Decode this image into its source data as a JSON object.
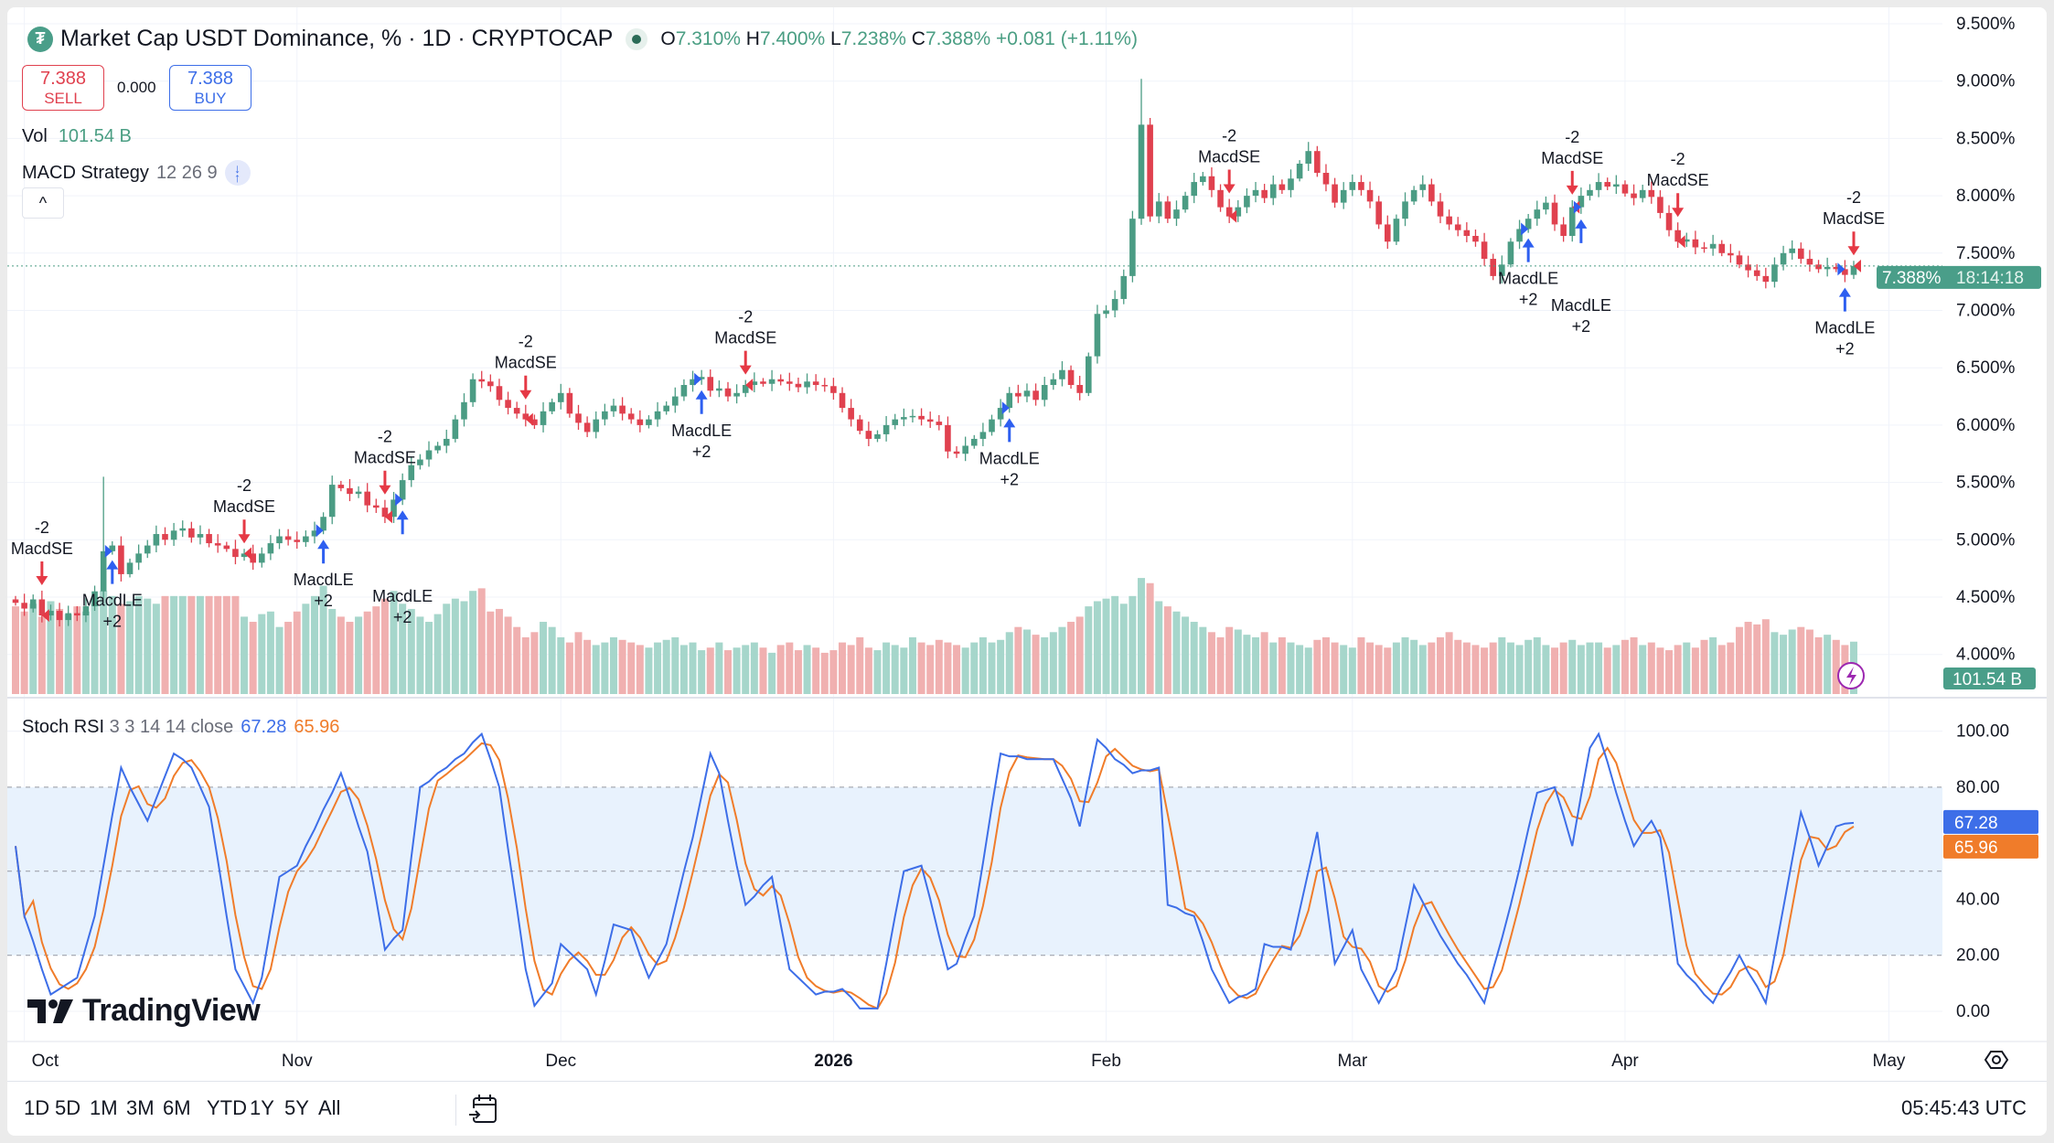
{
  "header": {
    "symbol_icon": "tether-logo",
    "title": "Market Cap USDT Dominance, % · 1D · CRYPTOCAP",
    "status": "market-open-dot",
    "o_label": "O",
    "o": "7.310%",
    "h_label": "H",
    "h": "7.400%",
    "l_label": "L",
    "l": "7.238%",
    "c_label": "C",
    "c": "7.388%",
    "change": "+0.081 (+1.11%)"
  },
  "trade": {
    "sell_price": "7.388",
    "sell_label": "SELL",
    "spread": "0.000",
    "buy_price": "7.388",
    "buy_label": "BUY"
  },
  "volume_legend": {
    "label": "Vol",
    "value": "101.54 B"
  },
  "strategy_legend": {
    "name": "MACD Strategy",
    "params": "12 26 9",
    "icon": "strategy-arrows-icon"
  },
  "collapse_label": "^",
  "stoch_legend": {
    "name": "Stoch RSI",
    "params": "3 3 14 14 close",
    "k": "67.28",
    "d": "65.96"
  },
  "branding": "TradingView",
  "price_axis": {
    "ticks": [
      "9.500%",
      "9.000%",
      "8.500%",
      "8.000%",
      "7.500%",
      "7.000%",
      "6.500%",
      "6.000%",
      "5.500%",
      "5.000%",
      "4.500%",
      "4.000%"
    ],
    "last_price": "7.388%",
    "countdown": "18:14:18",
    "last_volume": "101.54 B"
  },
  "stoch_axis": {
    "ticks": [
      "100.00",
      "80.00",
      "40.00",
      "20.00",
      "0.00"
    ],
    "k_tag": "67.28",
    "d_tag": "65.96"
  },
  "time_axis": [
    "Oct",
    "Nov",
    "Dec",
    "2026",
    "Feb",
    "Mar",
    "Apr",
    "May"
  ],
  "bottom_bar": {
    "ranges": [
      "1D",
      "5D",
      "1M",
      "3M",
      "6M",
      "YTD",
      "1Y",
      "5Y",
      "All"
    ],
    "clock": "05:45:43 UTC"
  },
  "colors": {
    "up": "#4b9c84",
    "down": "#e0414f",
    "vol_up": "#a6d6cb",
    "vol_down": "#f0b0b0",
    "k_line": "#3d6ee8",
    "d_line": "#f07c2a",
    "band": "#e8f2fd",
    "long_signal": "#2e5ff0",
    "short_signal": "#e53945"
  },
  "chart_data": {
    "type": "candlestick",
    "title": "Market Cap USDT Dominance, %",
    "interval": "1D",
    "ylim": [
      4.0,
      9.5
    ],
    "y_unit": "%",
    "close": [
      4.45,
      4.4,
      4.48,
      4.34,
      4.38,
      4.3,
      4.36,
      4.34,
      4.42,
      4.55,
      4.9,
      4.95,
      4.7,
      4.8,
      4.88,
      4.95,
      5.05,
      5.0,
      5.08,
      5.1,
      5.02,
      5.05,
      4.97,
      4.95,
      4.92,
      4.85,
      4.88,
      4.8,
      4.88,
      4.97,
      5.03,
      5.0,
      4.98,
      5.03,
      5.08,
      5.2,
      5.48,
      5.45,
      5.4,
      5.42,
      5.3,
      5.28,
      5.2,
      5.35,
      5.52,
      5.65,
      5.7,
      5.78,
      5.82,
      5.88,
      6.05,
      6.2,
      6.4,
      6.38,
      6.34,
      6.22,
      6.15,
      6.1,
      6.05,
      6.0,
      6.12,
      6.2,
      6.28,
      6.1,
      6.02,
      5.94,
      6.05,
      6.12,
      6.17,
      6.1,
      6.05,
      6.0,
      6.05,
      6.12,
      6.17,
      6.25,
      6.35,
      6.4,
      6.42,
      6.3,
      6.32,
      6.25,
      6.28,
      6.35,
      6.38,
      6.36,
      6.4,
      6.38,
      6.36,
      6.33,
      6.38,
      6.35,
      6.34,
      6.28,
      6.15,
      6.05,
      5.95,
      5.88,
      5.92,
      6.0,
      6.05,
      6.07,
      6.08,
      6.05,
      6.03,
      6.0,
      5.77,
      5.75,
      5.82,
      5.88,
      5.94,
      6.05,
      6.15,
      6.28,
      6.25,
      6.3,
      6.22,
      6.35,
      6.4,
      6.48,
      6.35,
      6.28,
      6.6,
      6.97,
      7.0,
      7.1,
      7.3,
      7.8,
      8.62,
      7.82,
      7.95,
      7.8,
      7.88,
      8.0,
      8.12,
      8.17,
      8.05,
      7.9,
      7.82,
      7.9,
      8.0,
      8.05,
      7.98,
      8.1,
      8.05,
      8.15,
      8.28,
      8.39,
      8.2,
      8.1,
      7.94,
      8.05,
      8.12,
      8.05,
      7.95,
      7.75,
      7.6,
      7.8,
      7.95,
      8.05,
      8.1,
      7.95,
      7.82,
      7.75,
      7.7,
      7.65,
      7.6,
      7.45,
      7.3,
      7.4,
      7.6,
      7.71,
      7.8,
      7.88,
      7.94,
      7.75,
      7.65,
      7.9,
      8.0,
      8.05,
      8.12,
      8.08,
      8.1,
      8.02,
      7.98,
      8.05,
      7.99,
      7.85,
      7.7,
      7.6,
      7.62,
      7.55,
      7.54,
      7.58,
      7.5,
      7.48,
      7.4,
      7.35,
      7.3,
      7.25,
      7.4,
      7.5,
      7.54,
      7.45,
      7.4,
      7.36,
      7.38,
      7.36,
      7.31,
      7.388
    ],
    "wick_high_overrides": {
      "10": 5.55,
      "128": 9.02
    },
    "volume_b": [
      170,
      160,
      175,
      150,
      180,
      165,
      155,
      170,
      160,
      185,
      200,
      190,
      175,
      180,
      190,
      185,
      175,
      190,
      190,
      190,
      190,
      190,
      190,
      190,
      190,
      190,
      150,
      140,
      155,
      160,
      130,
      140,
      160,
      175,
      190,
      210,
      165,
      150,
      140,
      150,
      160,
      170,
      185,
      200,
      175,
      165,
      150,
      140,
      155,
      175,
      185,
      180,
      200,
      205,
      160,
      165,
      150,
      130,
      110,
      120,
      140,
      130,
      110,
      100,
      120,
      105,
      95,
      100,
      110,
      105,
      100,
      95,
      90,
      100,
      105,
      110,
      95,
      100,
      85,
      90,
      100,
      85,
      90,
      95,
      100,
      90,
      80,
      95,
      100,
      85,
      95,
      90,
      80,
      85,
      100,
      95,
      110,
      90,
      85,
      100,
      95,
      90,
      110,
      100,
      95,
      105,
      100,
      95,
      90,
      100,
      110,
      100,
      105,
      120,
      130,
      125,
      115,
      110,
      120,
      130,
      140,
      150,
      170,
      180,
      185,
      190,
      175,
      190,
      225,
      215,
      180,
      170,
      160,
      150,
      140,
      130,
      120,
      110,
      130,
      125,
      115,
      110,
      120,
      100,
      110,
      100,
      95,
      90,
      105,
      110,
      100,
      95,
      90,
      110,
      100,
      95,
      90,
      100,
      110,
      105,
      95,
      100,
      110,
      120,
      105,
      100,
      95,
      90,
      100,
      110,
      100,
      95,
      105,
      110,
      95,
      90,
      100,
      105,
      95,
      100,
      100,
      90,
      95,
      105,
      110,
      95,
      100,
      90,
      85,
      95,
      100,
      90,
      105,
      110,
      95,
      100,
      130,
      140,
      135,
      145,
      120,
      115,
      125,
      130,
      125,
      110,
      115,
      105,
      95,
      101.54
    ],
    "stoch_rsi_k": [
      59,
      34,
      25,
      15,
      6,
      8,
      10,
      12,
      23,
      34,
      52,
      70,
      87,
      80,
      74,
      68,
      76,
      84,
      92,
      90,
      87,
      80,
      73,
      54,
      34,
      15,
      9,
      3,
      12,
      30,
      48,
      50,
      52,
      59,
      65,
      72,
      78,
      85,
      76,
      66,
      57,
      40,
      22,
      26,
      29,
      55,
      80,
      82,
      85,
      87,
      90,
      92,
      96,
      99,
      90,
      80,
      58,
      37,
      15,
      2,
      6,
      10,
      24,
      21,
      18,
      15,
      6,
      18,
      31,
      30,
      29,
      20,
      12,
      18,
      24,
      37,
      50,
      62,
      77,
      92,
      85,
      68,
      52,
      38,
      41,
      45,
      48,
      31,
      15,
      12,
      9,
      6,
      7,
      7,
      8,
      5,
      1,
      1,
      1,
      17,
      34,
      50,
      51,
      52,
      40,
      27,
      15,
      17,
      26,
      34,
      53,
      73,
      92,
      91,
      91,
      90,
      90,
      90,
      90,
      83,
      76,
      66,
      82,
      97,
      94,
      90,
      88,
      85,
      86,
      86,
      87,
      38,
      37,
      35,
      34,
      25,
      15,
      9,
      3,
      5,
      6,
      8,
      24,
      23,
      23,
      22,
      36,
      50,
      64,
      40,
      17,
      23,
      29,
      15,
      9,
      3,
      9,
      15,
      30,
      45,
      39,
      33,
      27,
      22,
      17,
      13,
      8,
      3,
      15,
      26,
      38,
      51,
      65,
      78,
      79,
      80,
      70,
      59,
      77,
      94,
      99,
      89,
      78,
      68,
      59,
      64,
      68,
      62,
      40,
      17,
      13,
      10,
      6,
      3,
      9,
      14,
      20,
      14,
      9,
      3,
      20,
      37,
      54,
      71,
      62,
      52,
      59,
      66,
      67,
      67.28
    ],
    "stoch_bands": [
      20,
      50,
      80
    ],
    "stoch_ylim": [
      0,
      100
    ],
    "signals": [
      {
        "type": "short",
        "bar": 3,
        "qty": "-2",
        "label": "MacdSE"
      },
      {
        "type": "long",
        "bar": 11,
        "qty": "+2",
        "label": "MacdLE"
      },
      {
        "type": "short",
        "bar": 26,
        "qty": "-2",
        "label": "MacdSE"
      },
      {
        "type": "long",
        "bar": 35,
        "qty": "+2",
        "label": "MacdLE"
      },
      {
        "type": "short",
        "bar": 42,
        "qty": "-2",
        "label": "MacdSE"
      },
      {
        "type": "long",
        "bar": 44,
        "qty": "+2",
        "label": "MacdLE"
      },
      {
        "type": "short",
        "bar": 58,
        "qty": "-2",
        "label": "MacdSE"
      },
      {
        "type": "long",
        "bar": 78,
        "qty": "+2",
        "label": "MacdLE"
      },
      {
        "type": "short",
        "bar": 83,
        "qty": "-2",
        "label": "MacdSE"
      },
      {
        "type": "long",
        "bar": 113,
        "qty": "+2",
        "label": "MacdLE"
      },
      {
        "type": "short",
        "bar": 138,
        "qty": "-2",
        "label": "MacdSE"
      },
      {
        "type": "long",
        "bar": 172,
        "qty": "+2",
        "label": "MacdLE"
      },
      {
        "type": "short",
        "bar": 177,
        "qty": "-2",
        "label": "MacdSE"
      },
      {
        "type": "long",
        "bar": 178,
        "qty": "+2",
        "label": "MacdLE"
      },
      {
        "type": "short",
        "bar": 189,
        "qty": "-2",
        "label": "MacdSE"
      },
      {
        "type": "long",
        "bar": 208,
        "qty": "+2",
        "label": "MacdLE"
      },
      {
        "type": "short",
        "bar": 209,
        "qty": "-2",
        "label": "MacdSE"
      }
    ]
  }
}
